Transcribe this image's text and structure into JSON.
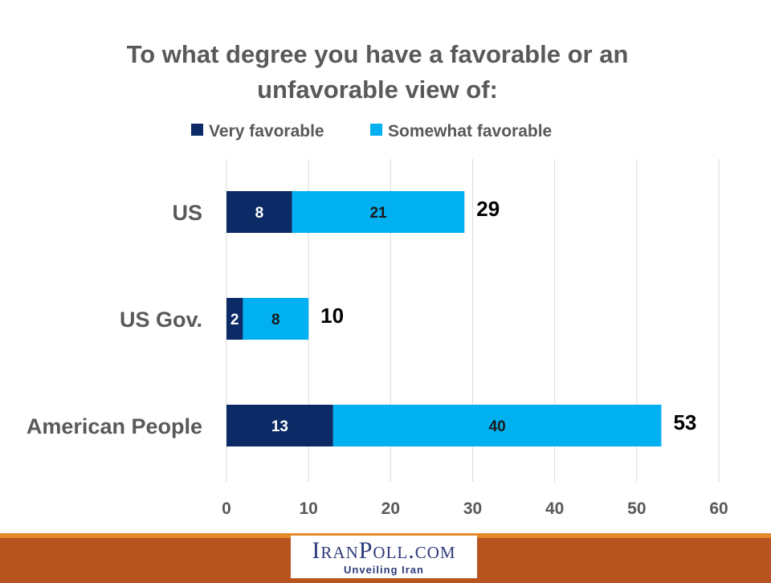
{
  "chart_data": {
    "type": "bar",
    "orientation": "horizontal",
    "stacked": true,
    "title_lines": [
      "To what degree you have a favorable or an",
      "unfavorable view of:"
    ],
    "categories": [
      "US",
      "US Gov.",
      "American People"
    ],
    "series": [
      {
        "name": "Very favorable",
        "values": [
          8,
          2,
          13
        ],
        "color": "#0b2a66"
      },
      {
        "name": "Somewhat favorable",
        "values": [
          21,
          8,
          40
        ],
        "color": "#00b0f0"
      }
    ],
    "totals": [
      29,
      10,
      53
    ],
    "xlim": [
      0,
      60
    ],
    "xticks": [
      0,
      10,
      20,
      30,
      40,
      50,
      60
    ],
    "grid": true,
    "legend_position": "top"
  },
  "footer": {
    "brand": "IranPoll.com",
    "tagline": "Unveiling Iran",
    "band_color": "#b8541f",
    "accent_color": "#e28a2a"
  }
}
